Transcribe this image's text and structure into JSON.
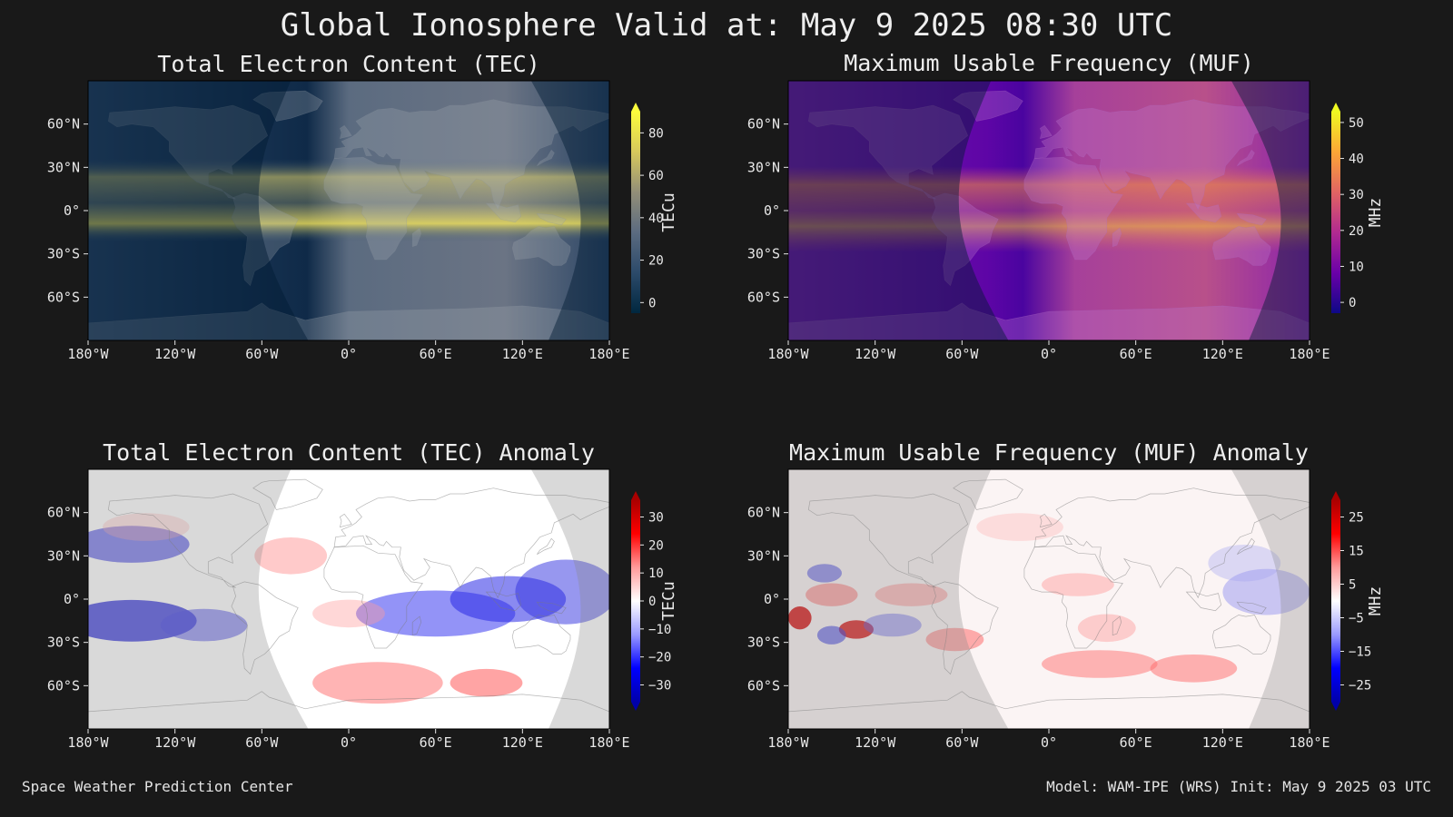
{
  "title": "Global Ionosphere Valid at: May 9 2025 08:30 UTC",
  "footer": {
    "left": "Space Weather Prediction Center",
    "right": "Model: WAM-IPE (WRS) Init: May 9 2025 03 UTC"
  },
  "axes": {
    "lat_labels": [
      "60°N",
      "30°N",
      "0°",
      "30°S",
      "60°S"
    ],
    "lat_values": [
      60,
      30,
      0,
      -30,
      -60
    ],
    "lon_labels": [
      "180°W",
      "120°W",
      "60°W",
      "0°",
      "60°E",
      "120°E",
      "180°E"
    ],
    "lon_values": [
      -180,
      -120,
      -60,
      0,
      60,
      120,
      180
    ],
    "lat_range": [
      -90,
      90
    ],
    "lon_range": [
      -180,
      180
    ]
  },
  "panels": [
    {
      "id": "tec",
      "title": "Total Electron Content (TEC)",
      "colorbar": {
        "label": "TECu",
        "ticks": [
          "0",
          "20",
          "40",
          "60",
          "80"
        ],
        "tick_values": [
          0,
          20,
          40,
          60,
          80
        ],
        "range": [
          -5,
          90
        ],
        "colors": [
          "#00273f",
          "#2c4a6a",
          "#5b6b80",
          "#928e78",
          "#d7c85c",
          "#fcfc3c"
        ]
      }
    },
    {
      "id": "muf",
      "title": "Maximum Usable Frequency (MUF)",
      "colorbar": {
        "label": "MHz",
        "ticks": [
          "0",
          "10",
          "20",
          "30",
          "40",
          "50"
        ],
        "tick_values": [
          0,
          10,
          20,
          30,
          40,
          50
        ],
        "range": [
          -3,
          53
        ],
        "colors": [
          "#0d0887",
          "#6a00a8",
          "#b12a90",
          "#e16462",
          "#fca636",
          "#f0f921"
        ]
      }
    },
    {
      "id": "tec-anomaly",
      "title": "Total Electron Content (TEC) Anomaly",
      "colorbar": {
        "label": "TECu",
        "ticks": [
          "30",
          "20",
          "10",
          "0",
          "−10",
          "−20",
          "−30"
        ],
        "tick_values": [
          30,
          20,
          10,
          0,
          -10,
          -20,
          -30
        ],
        "range": [
          -36,
          36
        ],
        "colors": [
          "#0000aa",
          "#0000ff",
          "#9a9aff",
          "#ffffff",
          "#ff9a9a",
          "#ff0000",
          "#aa0000"
        ]
      }
    },
    {
      "id": "muf-anomaly",
      "title": "Maximum Usable Frequency (MUF) Anomaly",
      "colorbar": {
        "label": "MHz",
        "ticks": [
          "25",
          "15",
          "5",
          "−5",
          "−15",
          "−25"
        ],
        "tick_values": [
          25,
          15,
          5,
          -5,
          -15,
          -25
        ],
        "range": [
          -30,
          30
        ],
        "colors": [
          "#0000aa",
          "#0000ff",
          "#9a9aff",
          "#ffffff",
          "#ff9a9a",
          "#ff0000",
          "#aa0000"
        ]
      }
    }
  ]
}
